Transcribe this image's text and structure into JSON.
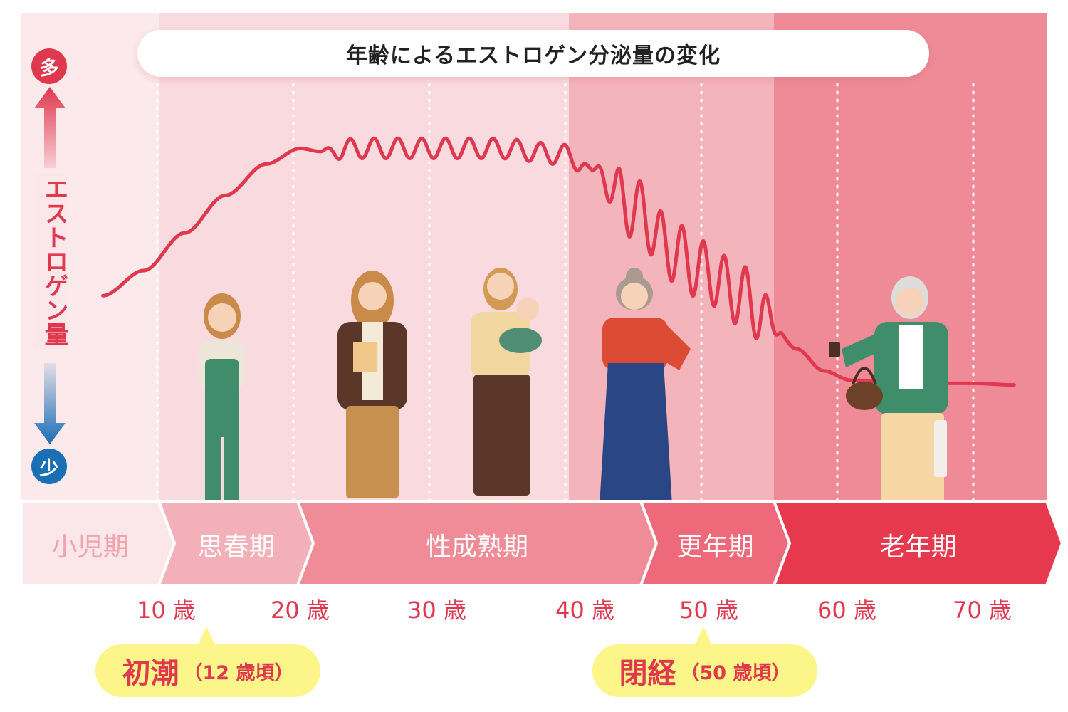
{
  "chart_data": {
    "type": "line",
    "title": "年齢によるエストロゲン分泌量の変化",
    "ylabel": "エストロゲン量",
    "y_high_label": "多",
    "y_low_label": "少",
    "xlabel": "",
    "x_ticks": [
      {
        "value": 10,
        "label": "10 歳"
      },
      {
        "value": 20,
        "label": "20 歳"
      },
      {
        "value": 30,
        "label": "30 歳"
      },
      {
        "value": 40,
        "label": "40 歳"
      },
      {
        "value": 50,
        "label": "50 歳"
      },
      {
        "value": 60,
        "label": "60 歳"
      },
      {
        "value": 70,
        "label": "70 歳"
      }
    ],
    "xlim": [
      0,
      75
    ],
    "ylim": [
      0,
      100
    ],
    "grid": "vertical dotted lines at each decade",
    "series": [
      {
        "color": "#e0384e",
        "points": [
          [
            6,
            42
          ],
          [
            9,
            50
          ],
          [
            12,
            62
          ],
          [
            15,
            74
          ],
          [
            18,
            84
          ],
          [
            20.5,
            89
          ],
          [
            22,
            88
          ],
          [
            25,
            89
          ],
          [
            30,
            89
          ],
          [
            35,
            89
          ],
          [
            40,
            87
          ],
          [
            42,
            82
          ],
          [
            45,
            70
          ],
          [
            48,
            56
          ],
          [
            50,
            50
          ],
          [
            53,
            42
          ],
          [
            55,
            34
          ],
          [
            57,
            25
          ],
          [
            59,
            18
          ],
          [
            61,
            15
          ],
          [
            65,
            14
          ],
          [
            70,
            14
          ],
          [
            73,
            13.5
          ]
        ],
        "fluctuation": "small wiggles from 22 to 42, large oscillations from 42 to 56"
      }
    ],
    "stages": [
      {
        "label": "小児期",
        "color": "#fbe7ea",
        "text_color": "#f0a2ad"
      },
      {
        "label": "思春期",
        "color": "#f4b0b8",
        "text_color": "#ffffff"
      },
      {
        "label": "性成熟期",
        "color": "#f08c97",
        "text_color": "#ffffff"
      },
      {
        "label": "更年期",
        "color": "#ee6a7a",
        "text_color": "#ffffff"
      },
      {
        "label": "老年期",
        "color": "#e6394e",
        "text_color": "#ffffff"
      }
    ],
    "annotations": [
      {
        "big": "初潮",
        "small": "（12 歳頃）",
        "age": 12
      },
      {
        "big": "閉経",
        "small": "（50 歳頃）",
        "age": 50
      }
    ]
  },
  "figures": [
    {
      "icon": "girl-in-overalls-figure"
    },
    {
      "icon": "young-woman-with-book-figure"
    },
    {
      "icon": "mother-holding-baby-figure"
    },
    {
      "icon": "middle-aged-woman-figure"
    },
    {
      "icon": "elderly-woman-with-bag-figure"
    }
  ],
  "colors": {
    "accent": "#e0384e",
    "low": "#1a6fb5",
    "callout": "#fbf58a"
  }
}
